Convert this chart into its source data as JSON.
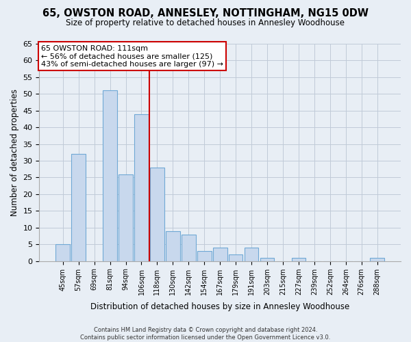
{
  "title": "65, OWSTON ROAD, ANNESLEY, NOTTINGHAM, NG15 0DW",
  "subtitle": "Size of property relative to detached houses in Annesley Woodhouse",
  "xlabel": "Distribution of detached houses by size in Annesley Woodhouse",
  "ylabel": "Number of detached properties",
  "bar_labels": [
    "45sqm",
    "57sqm",
    "69sqm",
    "81sqm",
    "94sqm",
    "106sqm",
    "118sqm",
    "130sqm",
    "142sqm",
    "154sqm",
    "167sqm",
    "179sqm",
    "191sqm",
    "203sqm",
    "215sqm",
    "227sqm",
    "239sqm",
    "252sqm",
    "264sqm",
    "276sqm",
    "288sqm"
  ],
  "bar_values": [
    5,
    32,
    0,
    51,
    26,
    44,
    28,
    9,
    8,
    3,
    4,
    2,
    4,
    1,
    0,
    1,
    0,
    0,
    0,
    0,
    1
  ],
  "bar_color": "#c8d8ed",
  "bar_edge_color": "#6fa8d5",
  "ylim": [
    0,
    65
  ],
  "yticks": [
    0,
    5,
    10,
    15,
    20,
    25,
    30,
    35,
    40,
    45,
    50,
    55,
    60,
    65
  ],
  "vline_x": 5.5,
  "vline_color": "#cc0000",
  "annotation_line1": "65 OWSTON ROAD: 111sqm",
  "annotation_line2": "← 56% of detached houses are smaller (125)",
  "annotation_line3": "43% of semi-detached houses are larger (97) →",
  "footer_line1": "Contains HM Land Registry data © Crown copyright and database right 2024.",
  "footer_line2": "Contains public sector information licensed under the Open Government Licence v3.0.",
  "background_color": "#e8eef5",
  "plot_background": "#e8eef5",
  "grid_color": "#c0cad8"
}
